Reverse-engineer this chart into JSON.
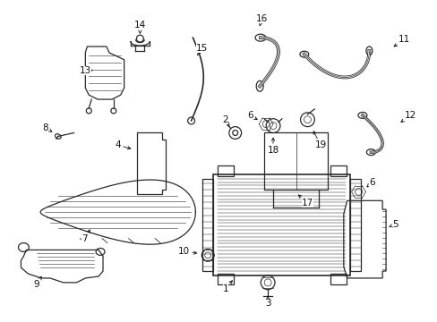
{
  "bg_color": "#ffffff",
  "line_color": "#2a2a2a",
  "label_color": "#111111",
  "label_fontsize": 7.5,
  "figsize": [
    4.89,
    3.6
  ],
  "dpi": 100
}
